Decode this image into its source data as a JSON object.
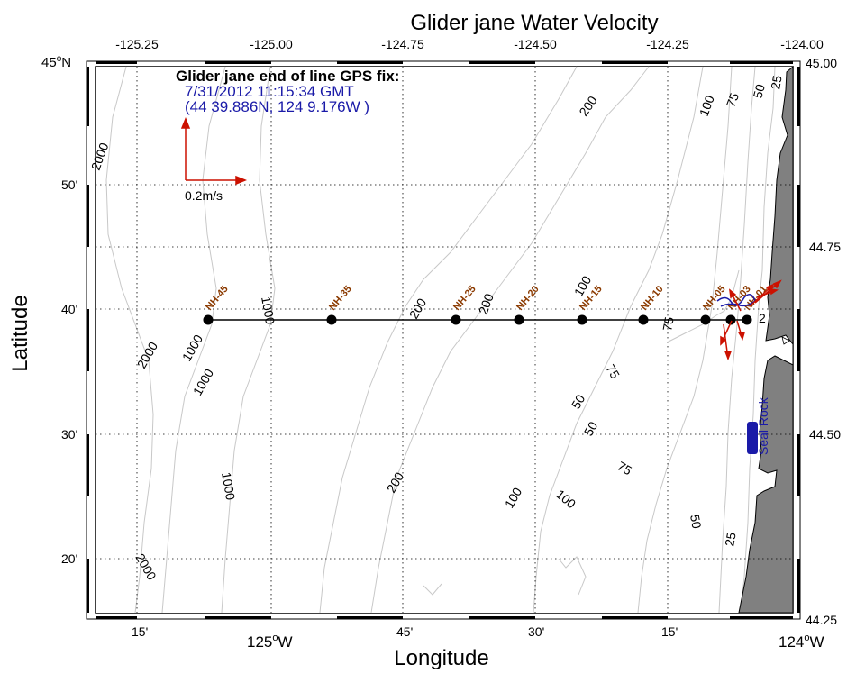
{
  "title": "Glider jane Water Velocity",
  "xlabel": "Longitude",
  "ylabel": "Latitude",
  "top_ticks": [
    "-125.25",
    "-125.00",
    "-124.75",
    "-124.50",
    "-124.25",
    "-124.00"
  ],
  "right_ticks": [
    "45.00",
    "44.75",
    "44.50",
    "44.25"
  ],
  "bottom_ticks": [
    {
      "t": "15'",
      "sup": ""
    },
    {
      "t": "125",
      "sup": "o",
      "suffix": "W"
    },
    {
      "t": "45'",
      "sup": ""
    },
    {
      "t": "30'",
      "sup": ""
    },
    {
      "t": "15'",
      "sup": ""
    },
    {
      "t": "124",
      "sup": "o",
      "suffix": "W"
    }
  ],
  "left_ticks": [
    {
      "t": "45",
      "sup": "o",
      "suffix": "N"
    },
    {
      "t": "50'"
    },
    {
      "t": "40'"
    },
    {
      "t": "30'"
    },
    {
      "t": "20'"
    }
  ],
  "gps_box": {
    "heading": "Glider jane end of line GPS fix:",
    "time": "7/31/2012 11:15:34 GMT",
    "position": "(44 39.886N, 124 9.176W )"
  },
  "scale_label": "0.2m/s",
  "stations": [
    {
      "name": "NH-45"
    },
    {
      "name": "NH-35"
    },
    {
      "name": "NH-25"
    },
    {
      "name": "NH-20"
    },
    {
      "name": "NH-15"
    },
    {
      "name": "NH-10"
    },
    {
      "name": "NH-05"
    },
    {
      "name": "NH-03"
    },
    {
      "name": "NH-01"
    }
  ],
  "place_label": "Seal Rock",
  "contour_labels": {
    "c25a": "25",
    "c50a": "50",
    "c75a": "75",
    "c100a": "100",
    "c200a": "200",
    "c2000a": "2000",
    "c1000a": "1000",
    "c100b": "100",
    "c200b": "200",
    "c200c": "200",
    "c75b": "75",
    "c2000b": "2000",
    "c1000b": "1000",
    "c1000c": "1000",
    "c75c": "75",
    "c50b": "50",
    "c50c": "50",
    "c75d": "75",
    "c1000d": "1000",
    "c200d": "200",
    "c100c": "100",
    "c100d": "100",
    "c50d": "50",
    "c25b": "25",
    "c2000c": "2000",
    "c2": "2"
  },
  "colors": {
    "land": "#808080",
    "track": "#000000",
    "vector": "#cc1100",
    "station_label": "#8b3a00",
    "gps_text": "#1a1aa8",
    "contour": "#c8c8c8"
  }
}
